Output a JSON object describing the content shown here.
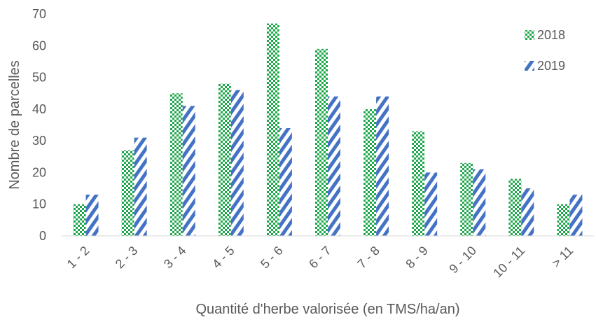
{
  "chart_data": {
    "type": "bar",
    "xlabel": "Quantité d'herbe valorisée (en TMS/ha/an)",
    "ylabel": "Nombre de parcelles",
    "categories": [
      "1 - 2",
      "2 - 3",
      "3 - 4",
      "4 - 5",
      "5 - 6",
      "6 - 7",
      "7 - 8",
      "8 - 9",
      "9 - 10",
      "10 - 11",
      "> 11"
    ],
    "series": [
      {
        "name": "2018",
        "values": [
          10,
          27,
          45,
          48,
          67,
          59,
          40,
          33,
          23,
          18,
          10
        ],
        "color": "#1EA64B",
        "pattern": "checkerboard"
      },
      {
        "name": "2019",
        "values": [
          13,
          31,
          41,
          46,
          34,
          44,
          44,
          20,
          21,
          15,
          13
        ],
        "color": "#4472C4",
        "pattern": "diagonal-stripes"
      }
    ],
    "ylim": [
      0,
      70
    ],
    "yticks": [
      0,
      10,
      20,
      30,
      40,
      50,
      60,
      70
    ],
    "grid": false,
    "legend_position": "top-right"
  }
}
